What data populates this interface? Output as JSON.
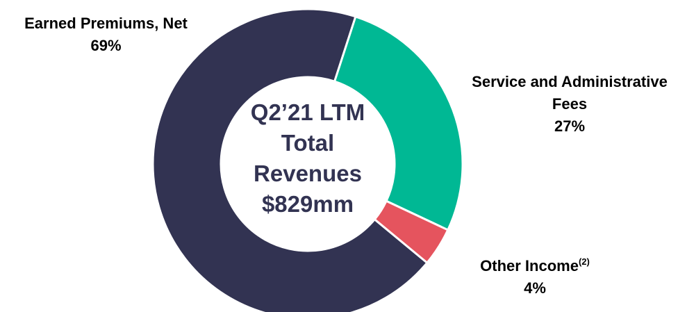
{
  "chart_data": {
    "type": "donut",
    "title": "Q2’21 LTM Total Revenues $829mm",
    "categories": [
      "Earned Premiums, Net",
      "Service and Administrative Fees",
      "Other Income"
    ],
    "footnote_markers": [
      null,
      null,
      "(2)"
    ],
    "values": [
      69,
      27,
      4
    ],
    "value_labels": [
      "69%",
      "27%",
      "4%"
    ],
    "colors": [
      "#323352",
      "#00b894",
      "#e5545e"
    ]
  }
}
